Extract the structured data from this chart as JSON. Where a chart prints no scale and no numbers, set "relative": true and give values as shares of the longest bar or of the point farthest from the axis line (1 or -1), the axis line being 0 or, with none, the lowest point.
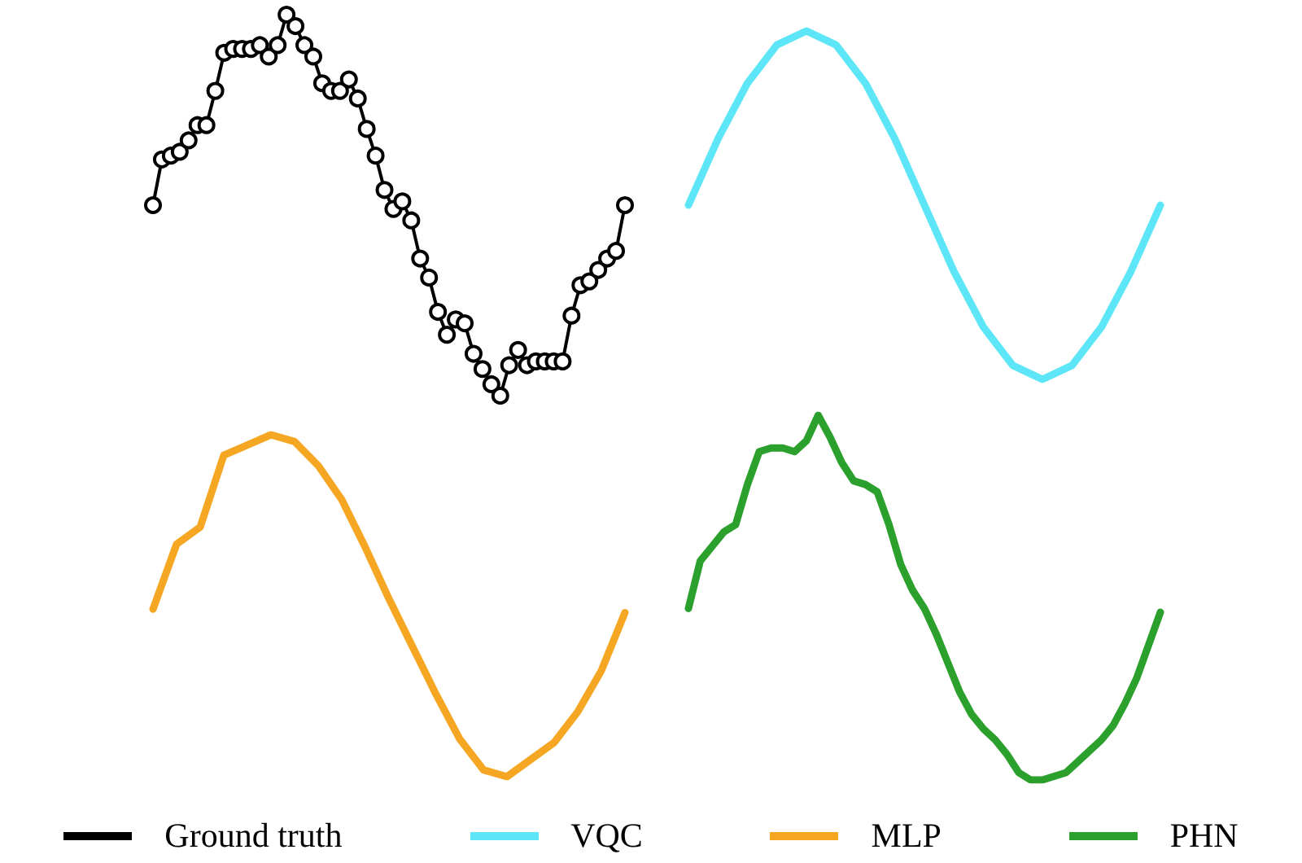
{
  "chart_data": [
    {
      "type": "line",
      "relative": true,
      "legend": "bottom",
      "marker": "circle",
      "tick_labels": false,
      "categories": [
        null,
        null,
        null,
        null,
        null,
        null,
        null,
        null,
        null,
        null,
        null,
        null,
        null,
        null,
        null,
        null,
        null,
        null,
        null,
        null,
        null,
        null,
        null,
        null,
        null,
        null,
        null,
        null,
        null,
        null,
        null,
        null,
        null,
        null,
        null,
        null,
        null,
        null,
        null,
        null,
        null,
        null,
        null,
        null,
        null,
        null,
        null,
        null,
        null,
        null,
        null,
        null,
        null,
        null
      ],
      "series": [
        {
          "name": "Ground truth",
          "color": "#000000",
          "values": [
            0.5,
            0.62,
            0.63,
            0.64,
            0.67,
            0.71,
            0.71,
            0.8,
            0.9,
            0.91,
            0.91,
            0.91,
            0.92,
            0.89,
            0.92,
            1.0,
            0.97,
            0.92,
            0.89,
            0.82,
            0.8,
            0.8,
            0.83,
            0.78,
            0.7,
            0.63,
            0.54,
            0.49,
            0.51,
            0.46,
            0.36,
            0.31,
            0.22,
            0.16,
            0.2,
            0.19,
            0.11,
            0.07,
            0.03,
            0.0,
            0.08,
            0.12,
            0.08,
            0.09,
            0.09,
            0.09,
            0.09,
            0.21,
            0.29,
            0.3,
            0.33,
            0.36,
            0.38,
            0.5
          ]
        }
      ]
    },
    {
      "type": "line",
      "relative": true,
      "legend": "bottom",
      "tick_labels": false,
      "categories": [
        null,
        null,
        null,
        null,
        null,
        null,
        null,
        null,
        null,
        null,
        null,
        null,
        null,
        null,
        null,
        null,
        null
      ],
      "series": [
        {
          "name": "VQC",
          "color": "#5ce6f7",
          "values": [
            0.5,
            0.69,
            0.85,
            0.96,
            1,
            0.96,
            0.85,
            0.69,
            0.5,
            0.31,
            0.15,
            0.04,
            0,
            0.04,
            0.15,
            0.31,
            0.5
          ]
        }
      ]
    },
    {
      "type": "line",
      "relative": true,
      "legend": "bottom",
      "tick_labels": false,
      "categories": [
        null,
        null,
        null,
        null,
        null,
        null,
        null,
        null,
        null,
        null,
        null,
        null,
        null,
        null,
        null,
        null,
        null,
        null,
        null,
        null,
        null
      ],
      "series": [
        {
          "name": "MLP",
          "color": "#f5a623",
          "values": [
            0.49,
            0.68,
            0.73,
            0.94,
            0.97,
            1.0,
            0.98,
            0.91,
            0.81,
            0.67,
            0.52,
            0.38,
            0.24,
            0.11,
            0.02,
            0.0,
            0.05,
            0.1,
            0.19,
            0.31,
            0.48
          ]
        }
      ]
    },
    {
      "type": "line",
      "relative": true,
      "legend": "bottom",
      "tick_labels": false,
      "categories": [
        null,
        null,
        null,
        null,
        null,
        null,
        null,
        null,
        null,
        null,
        null,
        null,
        null,
        null,
        null,
        null,
        null,
        null,
        null,
        null,
        null,
        null,
        null,
        null,
        null,
        null,
        null,
        null,
        null,
        null,
        null,
        null,
        null,
        null,
        null,
        null,
        null,
        null,
        null,
        null,
        null
      ],
      "series": [
        {
          "name": "PHN",
          "color": "#2ca02c",
          "values": [
            0.47,
            0.6,
            0.64,
            0.68,
            0.7,
            0.81,
            0.9,
            0.91,
            0.91,
            0.9,
            0.93,
            1.0,
            0.94,
            0.87,
            0.82,
            0.81,
            0.79,
            0.7,
            0.59,
            0.52,
            0.47,
            0.4,
            0.32,
            0.24,
            0.18,
            0.14,
            0.11,
            0.07,
            0.02,
            0.0,
            0.0,
            0.01,
            0.02,
            0.05,
            0.08,
            0.11,
            0.15,
            0.21,
            0.28,
            0.37,
            0.46
          ]
        }
      ]
    }
  ]
}
